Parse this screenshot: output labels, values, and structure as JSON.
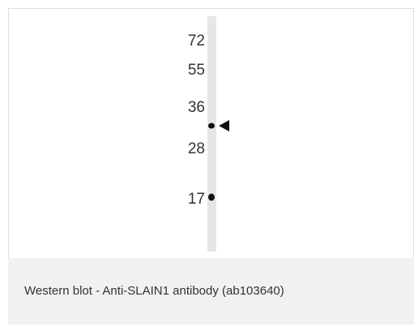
{
  "figure": {
    "markers": [
      "72",
      "55",
      "36",
      "28",
      "17"
    ],
    "caption": "Western blot - Anti-SLAIN1 antibody (ab103640)"
  }
}
